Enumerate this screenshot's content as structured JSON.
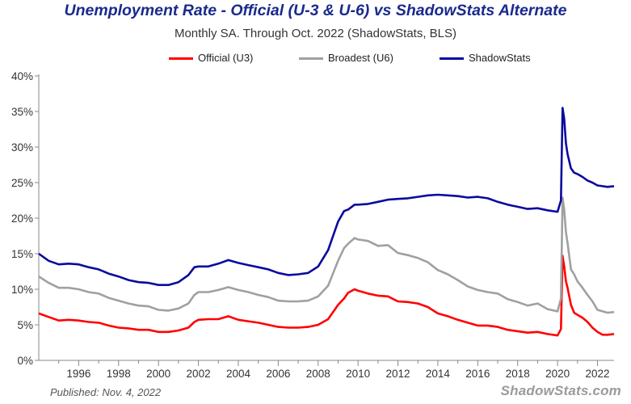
{
  "chart_data": {
    "type": "line",
    "title": "Unemployment Rate - Official (U-3 & U-6) vs ShadowStats Alternate",
    "subtitle": "Monthly SA. Through Oct. 2022  (ShadowStats, BLS)",
    "xlabel": "",
    "ylabel": "",
    "xlim": [
      1994.0,
      2022.83
    ],
    "ylim": [
      0,
      40
    ],
    "y_ticks": [
      "0%",
      "5%",
      "10%",
      "15%",
      "20%",
      "25%",
      "30%",
      "35%",
      "40%"
    ],
    "y_tick_values": [
      0,
      5,
      10,
      15,
      20,
      25,
      30,
      35,
      40
    ],
    "x_ticks": [
      "1996",
      "1998",
      "2000",
      "2002",
      "2004",
      "2006",
      "2008",
      "2010",
      "2012",
      "2014",
      "2016",
      "2018",
      "2020",
      "2022"
    ],
    "x_tick_values": [
      1996,
      1998,
      2000,
      2002,
      2004,
      2006,
      2008,
      2010,
      2012,
      2014,
      2016,
      2018,
      2020,
      2022
    ],
    "grid": false,
    "legend_position": "top",
    "series": [
      {
        "name": "Official (U3)",
        "color": "#ff0000",
        "points": [
          [
            1994.0,
            6.6
          ],
          [
            1994.5,
            6.1
          ],
          [
            1995.0,
            5.6
          ],
          [
            1995.5,
            5.7
          ],
          [
            1996.0,
            5.6
          ],
          [
            1996.5,
            5.4
          ],
          [
            1997.0,
            5.3
          ],
          [
            1997.5,
            4.9
          ],
          [
            1998.0,
            4.6
          ],
          [
            1998.5,
            4.5
          ],
          [
            1999.0,
            4.3
          ],
          [
            1999.5,
            4.3
          ],
          [
            2000.0,
            4.0
          ],
          [
            2000.5,
            4.0
          ],
          [
            2001.0,
            4.2
          ],
          [
            2001.5,
            4.6
          ],
          [
            2001.8,
            5.4
          ],
          [
            2002.0,
            5.7
          ],
          [
            2002.5,
            5.8
          ],
          [
            2003.0,
            5.8
          ],
          [
            2003.5,
            6.2
          ],
          [
            2004.0,
            5.7
          ],
          [
            2004.5,
            5.5
          ],
          [
            2005.0,
            5.3
          ],
          [
            2005.5,
            5.0
          ],
          [
            2006.0,
            4.7
          ],
          [
            2006.5,
            4.6
          ],
          [
            2007.0,
            4.6
          ],
          [
            2007.5,
            4.7
          ],
          [
            2008.0,
            5.0
          ],
          [
            2008.5,
            5.8
          ],
          [
            2009.0,
            7.8
          ],
          [
            2009.3,
            8.7
          ],
          [
            2009.5,
            9.5
          ],
          [
            2009.83,
            10.0
          ],
          [
            2010.0,
            9.8
          ],
          [
            2010.5,
            9.4
          ],
          [
            2011.0,
            9.1
          ],
          [
            2011.5,
            9.0
          ],
          [
            2012.0,
            8.3
          ],
          [
            2012.5,
            8.2
          ],
          [
            2013.0,
            8.0
          ],
          [
            2013.5,
            7.5
          ],
          [
            2014.0,
            6.6
          ],
          [
            2014.5,
            6.2
          ],
          [
            2015.0,
            5.7
          ],
          [
            2015.5,
            5.3
          ],
          [
            2016.0,
            4.9
          ],
          [
            2016.5,
            4.9
          ],
          [
            2017.0,
            4.7
          ],
          [
            2017.5,
            4.3
          ],
          [
            2018.0,
            4.1
          ],
          [
            2018.5,
            3.9
          ],
          [
            2019.0,
            4.0
          ],
          [
            2019.5,
            3.7
          ],
          [
            2020.0,
            3.5
          ],
          [
            2020.17,
            4.4
          ],
          [
            2020.25,
            14.7
          ],
          [
            2020.33,
            13.2
          ],
          [
            2020.42,
            11.1
          ],
          [
            2020.5,
            10.2
          ],
          [
            2020.67,
            7.8
          ],
          [
            2020.83,
            6.7
          ],
          [
            2021.0,
            6.4
          ],
          [
            2021.25,
            6.0
          ],
          [
            2021.5,
            5.4
          ],
          [
            2021.75,
            4.6
          ],
          [
            2022.0,
            4.0
          ],
          [
            2022.25,
            3.6
          ],
          [
            2022.5,
            3.6
          ],
          [
            2022.83,
            3.7
          ]
        ]
      },
      {
        "name": "Broadest (U6)",
        "color": "#a0a0a0",
        "points": [
          [
            1994.0,
            11.8
          ],
          [
            1994.5,
            10.9
          ],
          [
            1995.0,
            10.2
          ],
          [
            1995.5,
            10.2
          ],
          [
            1996.0,
            10.0
          ],
          [
            1996.5,
            9.6
          ],
          [
            1997.0,
            9.4
          ],
          [
            1997.5,
            8.8
          ],
          [
            1998.0,
            8.4
          ],
          [
            1998.5,
            8.0
          ],
          [
            1999.0,
            7.7
          ],
          [
            1999.5,
            7.6
          ],
          [
            2000.0,
            7.1
          ],
          [
            2000.5,
            7.0
          ],
          [
            2001.0,
            7.3
          ],
          [
            2001.5,
            8.0
          ],
          [
            2001.8,
            9.2
          ],
          [
            2002.0,
            9.6
          ],
          [
            2002.5,
            9.6
          ],
          [
            2003.0,
            9.9
          ],
          [
            2003.5,
            10.3
          ],
          [
            2004.0,
            9.9
          ],
          [
            2004.5,
            9.6
          ],
          [
            2005.0,
            9.2
          ],
          [
            2005.5,
            8.9
          ],
          [
            2006.0,
            8.4
          ],
          [
            2006.5,
            8.3
          ],
          [
            2007.0,
            8.3
          ],
          [
            2007.5,
            8.4
          ],
          [
            2008.0,
            9.0
          ],
          [
            2008.5,
            10.5
          ],
          [
            2009.0,
            14.0
          ],
          [
            2009.3,
            15.8
          ],
          [
            2009.5,
            16.4
          ],
          [
            2009.83,
            17.2
          ],
          [
            2010.0,
            17.0
          ],
          [
            2010.5,
            16.8
          ],
          [
            2011.0,
            16.1
          ],
          [
            2011.5,
            16.2
          ],
          [
            2012.0,
            15.1
          ],
          [
            2012.5,
            14.8
          ],
          [
            2013.0,
            14.4
          ],
          [
            2013.5,
            13.8
          ],
          [
            2014.0,
            12.7
          ],
          [
            2014.5,
            12.1
          ],
          [
            2015.0,
            11.3
          ],
          [
            2015.5,
            10.4
          ],
          [
            2016.0,
            9.9
          ],
          [
            2016.5,
            9.6
          ],
          [
            2017.0,
            9.4
          ],
          [
            2017.5,
            8.6
          ],
          [
            2018.0,
            8.2
          ],
          [
            2018.5,
            7.7
          ],
          [
            2019.0,
            8.0
          ],
          [
            2019.5,
            7.2
          ],
          [
            2020.0,
            6.9
          ],
          [
            2020.17,
            8.7
          ],
          [
            2020.25,
            22.9
          ],
          [
            2020.33,
            21.2
          ],
          [
            2020.42,
            18.0
          ],
          [
            2020.5,
            16.5
          ],
          [
            2020.67,
            12.8
          ],
          [
            2020.83,
            12.1
          ],
          [
            2021.0,
            11.1
          ],
          [
            2021.25,
            10.2
          ],
          [
            2021.5,
            9.2
          ],
          [
            2021.75,
            8.3
          ],
          [
            2022.0,
            7.1
          ],
          [
            2022.25,
            6.9
          ],
          [
            2022.5,
            6.7
          ],
          [
            2022.83,
            6.8
          ]
        ]
      },
      {
        "name": "ShadowStats",
        "color": "#0a0a9e",
        "points": [
          [
            1994.0,
            15.0
          ],
          [
            1994.5,
            14.0
          ],
          [
            1995.0,
            13.5
          ],
          [
            1995.5,
            13.6
          ],
          [
            1996.0,
            13.5
          ],
          [
            1996.5,
            13.1
          ],
          [
            1997.0,
            12.8
          ],
          [
            1997.5,
            12.2
          ],
          [
            1998.0,
            11.8
          ],
          [
            1998.5,
            11.3
          ],
          [
            1999.0,
            11.0
          ],
          [
            1999.5,
            10.9
          ],
          [
            2000.0,
            10.6
          ],
          [
            2000.5,
            10.6
          ],
          [
            2001.0,
            11.0
          ],
          [
            2001.5,
            12.0
          ],
          [
            2001.8,
            13.1
          ],
          [
            2002.0,
            13.2
          ],
          [
            2002.5,
            13.2
          ],
          [
            2003.0,
            13.6
          ],
          [
            2003.5,
            14.1
          ],
          [
            2004.0,
            13.7
          ],
          [
            2004.5,
            13.4
          ],
          [
            2005.0,
            13.1
          ],
          [
            2005.5,
            12.8
          ],
          [
            2006.0,
            12.3
          ],
          [
            2006.5,
            12.0
          ],
          [
            2007.0,
            12.1
          ],
          [
            2007.5,
            12.3
          ],
          [
            2008.0,
            13.2
          ],
          [
            2008.5,
            15.5
          ],
          [
            2009.0,
            19.5
          ],
          [
            2009.3,
            21.0
          ],
          [
            2009.5,
            21.2
          ],
          [
            2009.83,
            21.9
          ],
          [
            2010.0,
            21.9
          ],
          [
            2010.5,
            22.0
          ],
          [
            2011.0,
            22.3
          ],
          [
            2011.5,
            22.6
          ],
          [
            2012.0,
            22.7
          ],
          [
            2012.5,
            22.8
          ],
          [
            2013.0,
            23.0
          ],
          [
            2013.5,
            23.2
          ],
          [
            2014.0,
            23.3
          ],
          [
            2014.5,
            23.2
          ],
          [
            2015.0,
            23.1
          ],
          [
            2015.5,
            22.9
          ],
          [
            2016.0,
            23.0
          ],
          [
            2016.5,
            22.8
          ],
          [
            2017.0,
            22.3
          ],
          [
            2017.5,
            21.9
          ],
          [
            2018.0,
            21.6
          ],
          [
            2018.5,
            21.3
          ],
          [
            2019.0,
            21.4
          ],
          [
            2019.5,
            21.1
          ],
          [
            2020.0,
            20.9
          ],
          [
            2020.17,
            22.5
          ],
          [
            2020.25,
            35.5
          ],
          [
            2020.33,
            34.0
          ],
          [
            2020.42,
            30.5
          ],
          [
            2020.5,
            29.0
          ],
          [
            2020.67,
            27.0
          ],
          [
            2020.83,
            26.4
          ],
          [
            2021.0,
            26.2
          ],
          [
            2021.25,
            25.8
          ],
          [
            2021.5,
            25.3
          ],
          [
            2021.75,
            25.0
          ],
          [
            2022.0,
            24.6
          ],
          [
            2022.25,
            24.5
          ],
          [
            2022.5,
            24.4
          ],
          [
            2022.83,
            24.5
          ]
        ]
      }
    ]
  },
  "footer": {
    "published": "Published: Nov. 4, 2022",
    "brand": "ShadowStats.com"
  }
}
